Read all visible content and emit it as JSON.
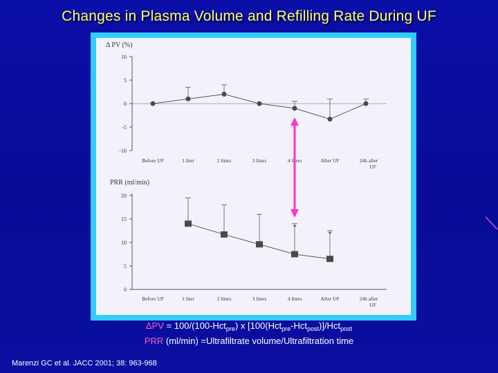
{
  "slide": {
    "title": "Changes in Plasma Volume and Refilling Rate During UF",
    "citation": "Marenzi GC et al. JACC 2001; 38: 963-968"
  },
  "formulas": {
    "pv_symbol": "ΔPV",
    "pv_part1": " = 100/(100-Hct",
    "pv_sub_pre1": "pre",
    "pv_part2": ") x [100(Hct",
    "pv_sub_pre2": "pre",
    "pv_part3": "-Hct",
    "pv_sub_post1": "post",
    "pv_part4": ")]/Hct",
    "pv_sub_post2": "post",
    "prr_symbol": "PRR",
    "prr_rest": " (ml/min) =Ultrafiltrate volume/Ultrafiltration time"
  },
  "colors": {
    "background": "#0a0fa8",
    "title": "#ffff66",
    "frame": "#33ccff",
    "highlight": "#ff55cc",
    "arrow": "#ff33cc",
    "marker": "#4a4a4a"
  },
  "chart_data": [
    {
      "type": "line",
      "ylabel": "Δ PV (%)",
      "categories": [
        "Before UF",
        "1 liter",
        "2 liters",
        "3 liters",
        "4 liters",
        "After UF",
        "24h after UF"
      ],
      "values": [
        0,
        1,
        2,
        0,
        -1,
        -3.3,
        0
      ],
      "error_upper": [
        0,
        3.5,
        4,
        0,
        0.5,
        1,
        1
      ],
      "error_lower": [
        0,
        0,
        0,
        0,
        0,
        0,
        0
      ],
      "yticks": [
        10,
        5,
        0,
        -5,
        -10
      ],
      "ylim": [
        -10,
        10
      ]
    },
    {
      "type": "line",
      "ylabel": "PRR (ml/min)",
      "categories": [
        "Before UF",
        "1 liter",
        "2 liters",
        "3 liters",
        "4 liters",
        "After UF",
        "24h after UF"
      ],
      "values": [
        null,
        14,
        11.7,
        9.6,
        7.5,
        6.5,
        null
      ],
      "error_upper": [
        null,
        19.5,
        18,
        16,
        14,
        12.5,
        null
      ],
      "annotations": [
        {
          "category": "4 liters",
          "text": "*"
        },
        {
          "category": "After UF",
          "text": "*"
        }
      ],
      "yticks": [
        20,
        15,
        10,
        5,
        0
      ],
      "ylim": [
        0,
        20
      ]
    }
  ]
}
